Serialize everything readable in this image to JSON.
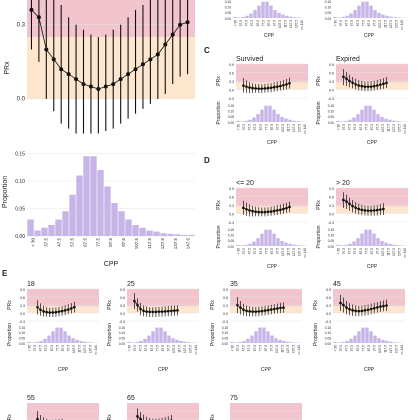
{
  "figure": {
    "panel_letters": [
      "C",
      "D",
      "E"
    ],
    "x_label": "CPP",
    "y_label_top": "PRx",
    "y_label_bottom": "Proportion",
    "colors": {
      "zone_red": "#f2c4cd",
      "zone_orange": "#fde6cd",
      "zone_green": "#d4ecd4",
      "bar": "#c6b5e6",
      "point": "#111111",
      "grid": "#e4e4e4",
      "text": "#222222"
    }
  },
  "chart_data": [
    {
      "id": "B",
      "type": "line",
      "title": "",
      "xlabel": "",
      "ylabel": "PRx",
      "ylim": [
        -0.15,
        0.4
      ],
      "y_ticks": [
        "0.3",
        "0.0"
      ],
      "note": "error bars show vertical intervals; top of panel is cropped",
      "x": [
        30,
        35,
        40,
        45,
        50,
        55,
        60,
        65,
        70,
        75,
        80,
        85,
        90,
        95,
        100,
        105,
        110,
        115,
        120,
        125,
        130,
        135
      ],
      "y": [
        0.36,
        0.33,
        0.2,
        0.16,
        0.12,
        0.1,
        0.08,
        0.06,
        0.05,
        0.04,
        0.05,
        0.06,
        0.08,
        0.1,
        0.12,
        0.14,
        0.16,
        0.18,
        0.22,
        0.26,
        0.3,
        0.31
      ],
      "y_low": [
        0.2,
        0.15,
        0.0,
        -0.05,
        -0.1,
        -0.12,
        -0.14,
        -0.14,
        -0.14,
        -0.14,
        -0.13,
        -0.12,
        -0.1,
        -0.08,
        -0.06,
        -0.04,
        -0.02,
        0.0,
        0.02,
        0.06,
        0.09,
        0.1
      ],
      "y_high": [
        0.4,
        0.4,
        0.4,
        0.4,
        0.38,
        0.33,
        0.3,
        0.28,
        0.26,
        0.25,
        0.26,
        0.28,
        0.3,
        0.33,
        0.36,
        0.38,
        0.4,
        0.4,
        0.4,
        0.4,
        0.4,
        0.4
      ]
    },
    {
      "id": "B_hist",
      "type": "bar",
      "title": "",
      "xlabel": "CPP",
      "ylabel": "Proportion",
      "ylim": [
        0,
        0.16
      ],
      "categories": [
        "<30",
        "32.5",
        "37.5",
        "42.5",
        "47.5",
        "52.5",
        "57.5",
        "62.5",
        "67.5",
        "72.5",
        "77.5",
        "82.5",
        "87.5",
        "92.5",
        "97.5",
        "102.5",
        "107.5",
        "112.5",
        "117.5",
        "122.5",
        "127.5",
        "132.5",
        "137.5",
        "142.5"
      ],
      "tick_labels": [
        "< 30",
        "37.5",
        "47.5",
        "57.5",
        "67.5",
        "77.5",
        "87.5",
        "97.5",
        "107.5",
        "117.5",
        "127.5",
        "137.5",
        "147.5"
      ],
      "values": [
        0.03,
        0.01,
        0.015,
        0.02,
        0.03,
        0.045,
        0.075,
        0.11,
        0.145,
        0.145,
        0.12,
        0.09,
        0.06,
        0.045,
        0.03,
        0.02,
        0.015,
        0.01,
        0.008,
        0.005,
        0.004,
        0.003,
        0.002,
        0.002
      ]
    },
    {
      "id": "C-survived",
      "type": "line",
      "title": "Survived",
      "xlabel": "CPP",
      "ylabel": "PRx",
      "ylim": [
        -0.3,
        0.9
      ],
      "y_ticks": [
        "0.9",
        "0.6",
        "0.3",
        "0.0",
        "-0.3"
      ],
      "x": [
        40,
        45,
        50,
        55,
        60,
        65,
        70,
        75,
        80,
        85,
        90,
        95,
        100,
        105,
        110,
        115
      ],
      "y": [
        0.14,
        0.1,
        0.07,
        0.05,
        0.04,
        0.03,
        0.03,
        0.04,
        0.05,
        0.06,
        0.08,
        0.1,
        0.12,
        0.15,
        0.18,
        0.22
      ],
      "y_low": [
        -0.1,
        -0.12,
        -0.12,
        -0.12,
        -0.12,
        -0.12,
        -0.12,
        -0.11,
        -0.1,
        -0.1,
        -0.08,
        -0.06,
        -0.04,
        -0.02,
        0.0,
        0.03
      ],
      "y_high": [
        0.4,
        0.32,
        0.26,
        0.22,
        0.2,
        0.19,
        0.19,
        0.2,
        0.21,
        0.23,
        0.25,
        0.28,
        0.3,
        0.33,
        0.37,
        0.42
      ]
    },
    {
      "id": "C-expired",
      "type": "line",
      "title": "Expired",
      "xlabel": "CPP",
      "ylabel": "PRx",
      "ylim": [
        -0.3,
        0.9
      ],
      "y_ticks": [
        "0.9",
        "0.6",
        "0.3",
        "0.0",
        "-0.3"
      ],
      "x": [
        40,
        45,
        50,
        55,
        60,
        65,
        70,
        75,
        80,
        85,
        90,
        95,
        100,
        105,
        110
      ],
      "y": [
        0.45,
        0.38,
        0.3,
        0.24,
        0.18,
        0.14,
        0.12,
        0.1,
        0.1,
        0.1,
        0.12,
        0.14,
        0.17,
        0.2,
        0.23
      ],
      "y_low": [
        0.15,
        0.12,
        0.08,
        0.04,
        0.0,
        -0.04,
        -0.05,
        -0.06,
        -0.06,
        -0.06,
        -0.04,
        -0.02,
        0.0,
        0.02,
        0.05
      ],
      "y_high": [
        0.72,
        0.62,
        0.52,
        0.44,
        0.38,
        0.33,
        0.3,
        0.28,
        0.28,
        0.29,
        0.31,
        0.34,
        0.37,
        0.4,
        0.44
      ]
    },
    {
      "id": "D-le20",
      "type": "line",
      "title": "<= 20",
      "xlabel": "CPP",
      "ylabel": "PRx",
      "ylim": [
        -0.3,
        0.9
      ],
      "y_ticks": [
        "0.9",
        "0.6",
        "0.3",
        "0.0",
        "-0.3"
      ],
      "x": [
        40,
        45,
        50,
        55,
        60,
        65,
        70,
        75,
        80,
        85,
        90,
        95,
        100,
        105,
        110,
        115
      ],
      "y": [
        0.2,
        0.15,
        0.11,
        0.08,
        0.06,
        0.05,
        0.05,
        0.05,
        0.06,
        0.07,
        0.09,
        0.11,
        0.13,
        0.16,
        0.19,
        0.23
      ],
      "y_low": [
        -0.05,
        -0.08,
        -0.1,
        -0.1,
        -0.1,
        -0.1,
        -0.1,
        -0.1,
        -0.09,
        -0.08,
        -0.06,
        -0.05,
        -0.03,
        -0.01,
        0.02,
        0.05
      ],
      "y_high": [
        0.45,
        0.38,
        0.32,
        0.27,
        0.24,
        0.22,
        0.21,
        0.21,
        0.22,
        0.24,
        0.26,
        0.29,
        0.32,
        0.35,
        0.38,
        0.42
      ]
    },
    {
      "id": "D-gt20",
      "type": "line",
      "title": "> 20",
      "xlabel": "CPP",
      "ylabel": "PRx",
      "ylim": [
        -0.3,
        0.9
      ],
      "y_ticks": [
        "0.9",
        "0.6",
        "0.3",
        "0.0",
        "-0.3"
      ],
      "x": [
        40,
        45,
        50,
        55,
        60,
        65,
        70,
        75,
        80,
        85,
        90,
        95,
        100,
        105
      ],
      "y": [
        0.48,
        0.42,
        0.34,
        0.26,
        0.2,
        0.16,
        0.13,
        0.11,
        0.1,
        0.1,
        0.11,
        0.12,
        0.14,
        0.16
      ],
      "y_low": [
        0.2,
        0.16,
        0.1,
        0.04,
        0.0,
        -0.04,
        -0.06,
        -0.07,
        -0.08,
        -0.08,
        -0.08,
        -0.07,
        -0.06,
        -0.05
      ],
      "y_high": [
        0.75,
        0.66,
        0.56,
        0.47,
        0.4,
        0.35,
        0.31,
        0.28,
        0.27,
        0.27,
        0.28,
        0.3,
        0.33,
        0.36
      ]
    },
    {
      "id": "E-18",
      "type": "line",
      "title": "18",
      "xlabel": "CPP",
      "ylabel": "PRx",
      "ylim": [
        -0.3,
        0.9
      ],
      "x": [
        45,
        50,
        55,
        60,
        65,
        70,
        75,
        80,
        85,
        90,
        95,
        100,
        105
      ],
      "y": [
        0.22,
        0.12,
        0.06,
        0.03,
        0.02,
        0.02,
        0.03,
        0.05,
        0.07,
        0.1,
        0.13,
        0.17,
        0.22
      ],
      "y_low": [
        -0.05,
        -0.1,
        -0.13,
        -0.14,
        -0.15,
        -0.15,
        -0.14,
        -0.12,
        -0.1,
        -0.08,
        -0.05,
        -0.02,
        0.02
      ],
      "y_high": [
        0.48,
        0.36,
        0.27,
        0.22,
        0.2,
        0.2,
        0.21,
        0.23,
        0.26,
        0.29,
        0.33,
        0.37,
        0.42
      ]
    },
    {
      "id": "E-25",
      "type": "line",
      "title": "25",
      "xlabel": "CPP",
      "ylabel": "PRx",
      "ylim": [
        -0.3,
        0.9
      ],
      "x": [
        40,
        45,
        50,
        55,
        60,
        65,
        70,
        75,
        80,
        85,
        90,
        95,
        100,
        105,
        110
      ],
      "y": [
        0.45,
        0.3,
        0.15,
        0.08,
        0.05,
        0.04,
        0.04,
        0.04,
        0.05,
        0.05,
        0.06,
        0.07,
        0.08,
        0.09,
        0.1
      ],
      "y_low": [
        0.15,
        0.05,
        -0.08,
        -0.12,
        -0.14,
        -0.15,
        -0.15,
        -0.15,
        -0.14,
        -0.14,
        -0.13,
        -0.12,
        -0.11,
        -0.1,
        -0.09
      ],
      "y_high": [
        0.75,
        0.55,
        0.38,
        0.28,
        0.24,
        0.22,
        0.22,
        0.22,
        0.23,
        0.24,
        0.25,
        0.26,
        0.27,
        0.28,
        0.29
      ]
    },
    {
      "id": "E-35",
      "type": "line",
      "title": "35",
      "xlabel": "CPP",
      "ylabel": "PRx",
      "ylim": [
        -0.3,
        0.9
      ],
      "x": [
        40,
        45,
        50,
        55,
        60,
        65,
        70,
        75,
        80,
        85,
        90,
        95,
        100,
        105,
        110,
        115
      ],
      "y": [
        0.3,
        0.2,
        0.12,
        0.08,
        0.06,
        0.05,
        0.05,
        0.06,
        0.07,
        0.09,
        0.11,
        0.13,
        0.15,
        0.17,
        0.19,
        0.2
      ],
      "y_low": [
        0.0,
        -0.05,
        -0.1,
        -0.12,
        -0.13,
        -0.13,
        -0.13,
        -0.12,
        -0.11,
        -0.09,
        -0.07,
        -0.05,
        -0.03,
        -0.01,
        0.0,
        0.01
      ],
      "y_high": [
        0.6,
        0.45,
        0.34,
        0.28,
        0.25,
        0.23,
        0.23,
        0.24,
        0.25,
        0.27,
        0.29,
        0.31,
        0.33,
        0.35,
        0.38,
        0.4
      ]
    },
    {
      "id": "E-45",
      "type": "line",
      "title": "45",
      "xlabel": "CPP",
      "ylabel": "PRx",
      "ylim": [
        -0.3,
        0.9
      ],
      "x": [
        40,
        45,
        50,
        55,
        60,
        65,
        70,
        75,
        80,
        85,
        90,
        95,
        100,
        105,
        110,
        115
      ],
      "y": [
        0.38,
        0.3,
        0.2,
        0.14,
        0.1,
        0.08,
        0.07,
        0.08,
        0.1,
        0.12,
        0.15,
        0.18,
        0.21,
        0.24,
        0.26,
        0.28
      ],
      "y_low": [
        0.08,
        0.02,
        -0.05,
        -0.09,
        -0.11,
        -0.12,
        -0.12,
        -0.11,
        -0.1,
        -0.08,
        -0.05,
        -0.02,
        0.01,
        0.04,
        0.06,
        0.08
      ],
      "y_high": [
        0.68,
        0.58,
        0.45,
        0.37,
        0.32,
        0.29,
        0.27,
        0.28,
        0.3,
        0.32,
        0.35,
        0.38,
        0.41,
        0.44,
        0.47,
        0.5
      ]
    },
    {
      "id": "E-55",
      "type": "line",
      "title": "55",
      "xlabel": "",
      "ylabel": "PRx",
      "ylim": [
        -0.3,
        0.9
      ],
      "x": [
        45,
        50,
        55,
        60,
        65,
        70,
        75,
        80,
        85
      ],
      "y": [
        0.3,
        0.2,
        0.14,
        0.1,
        0.08,
        0.08,
        0.09,
        0.1,
        0.12
      ],
      "y_low": [
        0.0,
        -0.05,
        -0.08,
        -0.1,
        -0.11,
        -0.11,
        -0.1,
        -0.09,
        -0.07
      ],
      "y_high": [
        0.6,
        0.45,
        0.36,
        0.3,
        0.27,
        0.27,
        0.28,
        0.29,
        0.31
      ]
    },
    {
      "id": "E-65",
      "type": "line",
      "title": "65",
      "xlabel": "",
      "ylabel": "PRx",
      "ylim": [
        -0.3,
        0.9
      ],
      "x": [
        45,
        50,
        55,
        60,
        65,
        70,
        75,
        80,
        85,
        90,
        95,
        100
      ],
      "y": [
        0.4,
        0.3,
        0.22,
        0.16,
        0.13,
        0.11,
        0.11,
        0.12,
        0.14,
        0.17,
        0.2,
        0.24
      ],
      "y_low": [
        0.1,
        0.04,
        -0.02,
        -0.06,
        -0.08,
        -0.09,
        -0.09,
        -0.08,
        -0.06,
        -0.03,
        0.0,
        0.03
      ],
      "y_high": [
        0.7,
        0.56,
        0.46,
        0.38,
        0.34,
        0.31,
        0.31,
        0.32,
        0.34,
        0.37,
        0.4,
        0.45
      ]
    },
    {
      "id": "E-75",
      "type": "line",
      "title": "75",
      "xlabel": "",
      "ylabel": "PRx",
      "ylim": [
        -0.3,
        0.9
      ],
      "x": [],
      "y": [],
      "y_low": [],
      "y_high": []
    }
  ],
  "small_hist_values": [
    0.01,
    0.005,
    0.01,
    0.02,
    0.04,
    0.07,
    0.11,
    0.145,
    0.145,
    0.11,
    0.07,
    0.045,
    0.03,
    0.02,
    0.012,
    0.007,
    0.004,
    0.002
  ],
  "small_hist_tick_labels": [
    "< 30",
    "37.5",
    "47.5",
    "57.5",
    "67.5",
    "77.5",
    "87.5",
    "97.5",
    "107.5",
    "117.5",
    "127.5",
    "137.5",
    ">= 140"
  ],
  "small_y_ticks_prop": [
    "0.15",
    "0.10",
    "0.05",
    "0.00"
  ],
  "small_y_ticks_prx": [
    "0.9",
    "0.6",
    "0.3",
    "0.0",
    "-0.3"
  ],
  "main_y_ticks_prop": [
    "0.15",
    "0.10",
    "0.05",
    "0.00"
  ]
}
